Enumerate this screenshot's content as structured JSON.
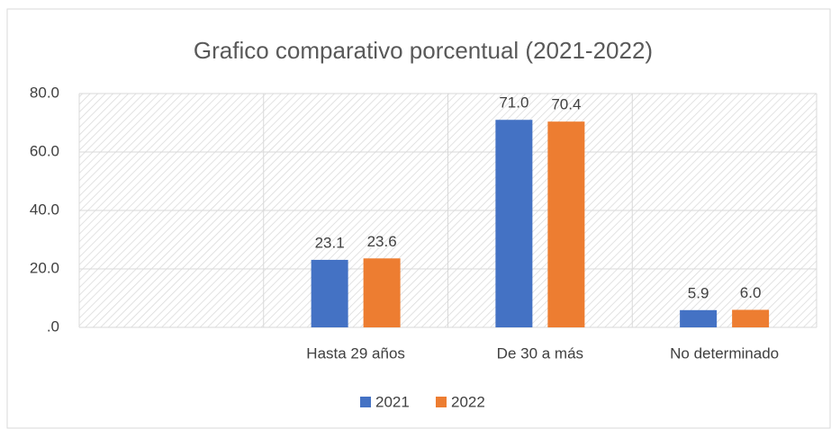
{
  "chart_data": {
    "type": "bar",
    "title": "Grafico comparativo porcentual (2021-2022)",
    "categories": [
      null,
      "Hasta 29 años",
      "De 30 a más",
      "No determinado"
    ],
    "series": [
      {
        "name": "2021",
        "color": "#4472c4",
        "values": [
          null,
          23.1,
          71.0,
          5.9
        ],
        "value_labels": [
          null,
          "23.1",
          "71.0",
          "5.9"
        ]
      },
      {
        "name": "2022",
        "color": "#ed7d31",
        "values": [
          null,
          23.6,
          70.4,
          6.0
        ],
        "value_labels": [
          null,
          "23.6",
          "70.4",
          "6.0"
        ]
      }
    ],
    "ylim": [
      0,
      80
    ],
    "yticks": [
      {
        "value": 0,
        "label": ".0"
      },
      {
        "value": 20,
        "label": "20.0"
      },
      {
        "value": 40,
        "label": "40.0"
      },
      {
        "value": 60,
        "label": "60.0"
      },
      {
        "value": 80,
        "label": "80.0"
      }
    ],
    "grid": true,
    "legend": "bottom"
  }
}
